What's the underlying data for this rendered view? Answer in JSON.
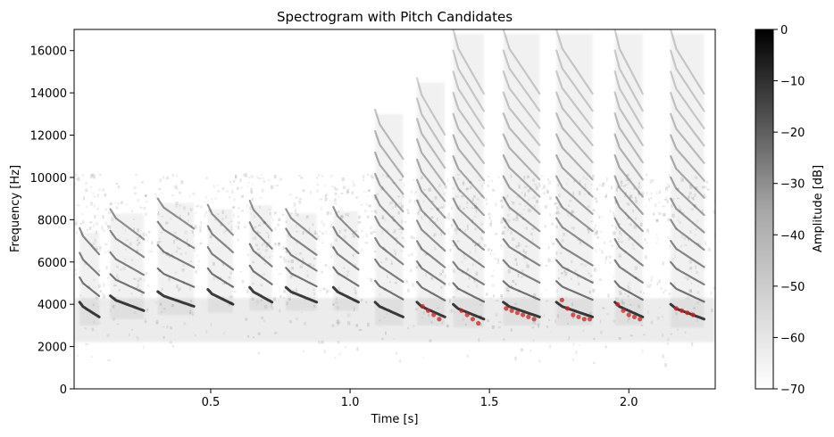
{
  "chart_data": {
    "type": "heatmap",
    "title": "Spectrogram with Pitch Candidates",
    "xlabel": "Time [s]",
    "ylabel": "Frequency [Hz]",
    "xlim": [
      0.01,
      2.31
    ],
    "ylim": [
      0,
      17000
    ],
    "x_ticks": [
      0.5,
      1.0,
      1.5,
      2.0
    ],
    "x_tick_labels": [
      "0.5",
      "1.0",
      "1.5",
      "2.0"
    ],
    "y_ticks": [
      0,
      2000,
      4000,
      6000,
      8000,
      10000,
      12000,
      14000,
      16000
    ],
    "y_tick_labels": [
      "0",
      "2000",
      "4000",
      "6000",
      "8000",
      "10000",
      "12000",
      "14000",
      "16000"
    ],
    "colorbar": {
      "label": "Amplitude [dB]",
      "range": [
        -70,
        0
      ],
      "ticks": [
        0,
        -10,
        -20,
        -30,
        -40,
        -50,
        -60,
        -70
      ],
      "tick_labels": [
        "0",
        "−10",
        "−20",
        "−30",
        "−40",
        "−50",
        "−60",
        "−70"
      ],
      "colormap": "gray_r"
    },
    "calls": [
      {
        "t_start": 0.03,
        "t_end": 0.1,
        "f_low": 3000,
        "f_high": 7400
      },
      {
        "t_start": 0.14,
        "t_end": 0.26,
        "f_low": 3300,
        "f_high": 8300
      },
      {
        "t_start": 0.31,
        "t_end": 0.44,
        "f_low": 3500,
        "f_high": 8800
      },
      {
        "t_start": 0.49,
        "t_end": 0.58,
        "f_low": 3600,
        "f_high": 8500
      },
      {
        "t_start": 0.64,
        "t_end": 0.72,
        "f_low": 3700,
        "f_high": 8700
      },
      {
        "t_start": 0.77,
        "t_end": 0.88,
        "f_low": 3700,
        "f_high": 8300
      },
      {
        "t_start": 0.94,
        "t_end": 1.03,
        "f_low": 3700,
        "f_high": 8400
      },
      {
        "t_start": 1.09,
        "t_end": 1.19,
        "f_low": 3000,
        "f_high": 13000
      },
      {
        "t_start": 1.24,
        "t_end": 1.34,
        "f_low": 3000,
        "f_high": 14500
      },
      {
        "t_start": 1.37,
        "t_end": 1.48,
        "f_low": 2900,
        "f_high": 16800
      },
      {
        "t_start": 1.55,
        "t_end": 1.68,
        "f_low": 3000,
        "f_high": 16800
      },
      {
        "t_start": 1.74,
        "t_end": 1.87,
        "f_low": 3000,
        "f_high": 16800
      },
      {
        "t_start": 1.95,
        "t_end": 2.05,
        "f_low": 3000,
        "f_high": 16800
      },
      {
        "t_start": 2.15,
        "t_end": 2.27,
        "f_low": 2900,
        "f_high": 16800
      }
    ],
    "pitch_candidates": [
      {
        "t": 1.26,
        "f": 3900
      },
      {
        "t": 1.28,
        "f": 3700
      },
      {
        "t": 1.3,
        "f": 3500
      },
      {
        "t": 1.32,
        "f": 3300
      },
      {
        "t": 1.4,
        "f": 3700
      },
      {
        "t": 1.42,
        "f": 3500
      },
      {
        "t": 1.44,
        "f": 3300
      },
      {
        "t": 1.46,
        "f": 3100
      },
      {
        "t": 1.56,
        "f": 3800
      },
      {
        "t": 1.58,
        "f": 3700
      },
      {
        "t": 1.6,
        "f": 3600
      },
      {
        "t": 1.62,
        "f": 3500
      },
      {
        "t": 1.64,
        "f": 3400
      },
      {
        "t": 1.66,
        "f": 3300
      },
      {
        "t": 1.76,
        "f": 4200
      },
      {
        "t": 1.78,
        "f": 3800
      },
      {
        "t": 1.8,
        "f": 3500
      },
      {
        "t": 1.82,
        "f": 3400
      },
      {
        "t": 1.84,
        "f": 3300
      },
      {
        "t": 1.86,
        "f": 3300
      },
      {
        "t": 1.96,
        "f": 4000
      },
      {
        "t": 1.98,
        "f": 3700
      },
      {
        "t": 2.0,
        "f": 3500
      },
      {
        "t": 2.02,
        "f": 3400
      },
      {
        "t": 2.04,
        "f": 3300
      },
      {
        "t": 2.17,
        "f": 3800
      },
      {
        "t": 2.19,
        "f": 3700
      },
      {
        "t": 2.21,
        "f": 3600
      },
      {
        "t": 2.23,
        "f": 3500
      }
    ],
    "colors": {
      "pitch_candidate": "#cc2222",
      "spectrogram_dark": "#000000",
      "spectrogram_light": "#ffffff"
    }
  }
}
